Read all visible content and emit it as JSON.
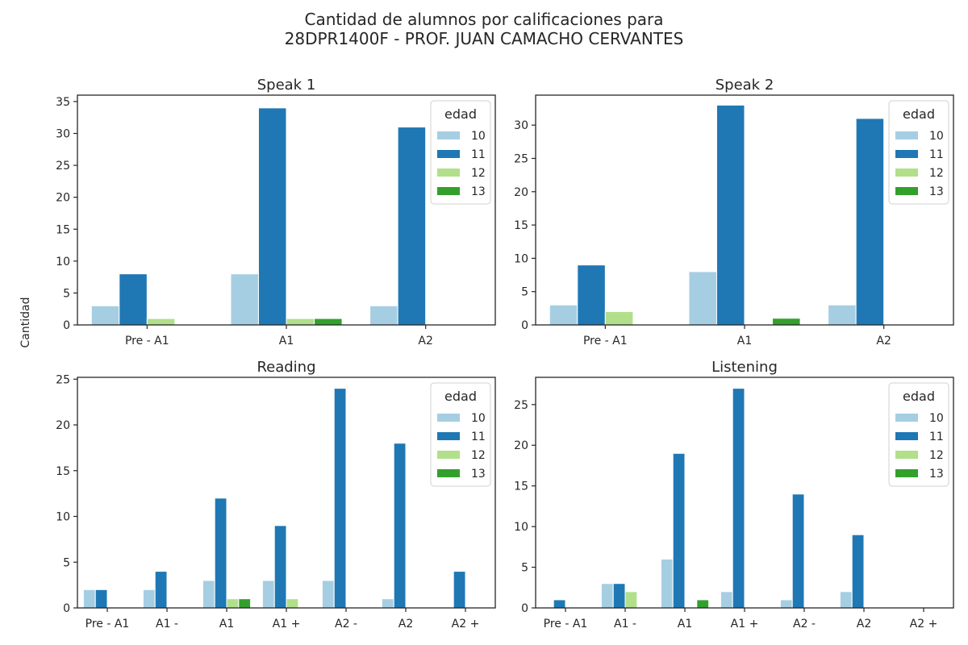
{
  "figure": {
    "title_line1": "Cantidad de alumnos por calificaciones para",
    "title_line2": "28DPR1400F - PROF. JUAN CAMACHO CERVANTES",
    "ylabel": "Cantidad"
  },
  "chart_data": [
    {
      "type": "bar",
      "title": "Speak 1",
      "categories": [
        "Pre - A1",
        "A1",
        "A2"
      ],
      "ylim": [
        0,
        36
      ],
      "yticks": [
        0,
        5,
        10,
        15,
        20,
        25,
        30,
        35
      ],
      "legend": {
        "title": "edad",
        "placement": "top-right"
      },
      "series": [
        {
          "name": "10",
          "color": "#a6cee3",
          "values": [
            3,
            8,
            3
          ]
        },
        {
          "name": "11",
          "color": "#1f78b4",
          "values": [
            8,
            34,
            31
          ]
        },
        {
          "name": "12",
          "color": "#b2df8a",
          "values": [
            1,
            1,
            0
          ]
        },
        {
          "name": "13",
          "color": "#33a02c",
          "values": [
            0,
            1,
            0
          ]
        }
      ]
    },
    {
      "type": "bar",
      "title": "Speak 2",
      "categories": [
        "Pre - A1",
        "A1",
        "A2"
      ],
      "ylim": [
        0,
        34.5
      ],
      "yticks": [
        0,
        5,
        10,
        15,
        20,
        25,
        30
      ],
      "legend": {
        "title": "edad",
        "placement": "top-right"
      },
      "series": [
        {
          "name": "10",
          "color": "#a6cee3",
          "values": [
            3,
            8,
            3
          ]
        },
        {
          "name": "11",
          "color": "#1f78b4",
          "values": [
            9,
            33,
            31
          ]
        },
        {
          "name": "12",
          "color": "#b2df8a",
          "values": [
            2,
            0,
            0
          ]
        },
        {
          "name": "13",
          "color": "#33a02c",
          "values": [
            0,
            1,
            0
          ]
        }
      ]
    },
    {
      "type": "bar",
      "title": "Reading",
      "categories": [
        "Pre - A1",
        "A1 -",
        "A1",
        "A1 +",
        "A2 -",
        "A2",
        "A2 +"
      ],
      "ylim": [
        0,
        25.2
      ],
      "yticks": [
        0,
        5,
        10,
        15,
        20,
        25
      ],
      "legend": {
        "title": "edad",
        "placement": "top-right"
      },
      "series": [
        {
          "name": "10",
          "color": "#a6cee3",
          "values": [
            2,
            2,
            3,
            3,
            3,
            1,
            0
          ]
        },
        {
          "name": "11",
          "color": "#1f78b4",
          "values": [
            2,
            4,
            12,
            9,
            24,
            18,
            4
          ]
        },
        {
          "name": "12",
          "color": "#b2df8a",
          "values": [
            0,
            0,
            1,
            1,
            0,
            0,
            0
          ]
        },
        {
          "name": "13",
          "color": "#33a02c",
          "values": [
            0,
            0,
            1,
            0,
            0,
            0,
            0
          ]
        }
      ]
    },
    {
      "type": "bar",
      "title": "Listening",
      "categories": [
        "Pre - A1",
        "A1 -",
        "A1",
        "A1 +",
        "A2 -",
        "A2",
        "A2 +"
      ],
      "ylim": [
        0,
        28.35
      ],
      "yticks": [
        0,
        5,
        10,
        15,
        20,
        25
      ],
      "legend": {
        "title": "edad",
        "placement": "top-right"
      },
      "series": [
        {
          "name": "10",
          "color": "#a6cee3",
          "values": [
            0,
            3,
            6,
            2,
            1,
            2,
            0
          ]
        },
        {
          "name": "11",
          "color": "#1f78b4",
          "values": [
            1,
            3,
            19,
            27,
            14,
            9,
            0
          ]
        },
        {
          "name": "12",
          "color": "#b2df8a",
          "values": [
            0,
            2,
            0,
            0,
            0,
            0,
            0
          ]
        },
        {
          "name": "13",
          "color": "#33a02c",
          "values": [
            0,
            0,
            1,
            0,
            0,
            0,
            0
          ]
        }
      ]
    }
  ]
}
